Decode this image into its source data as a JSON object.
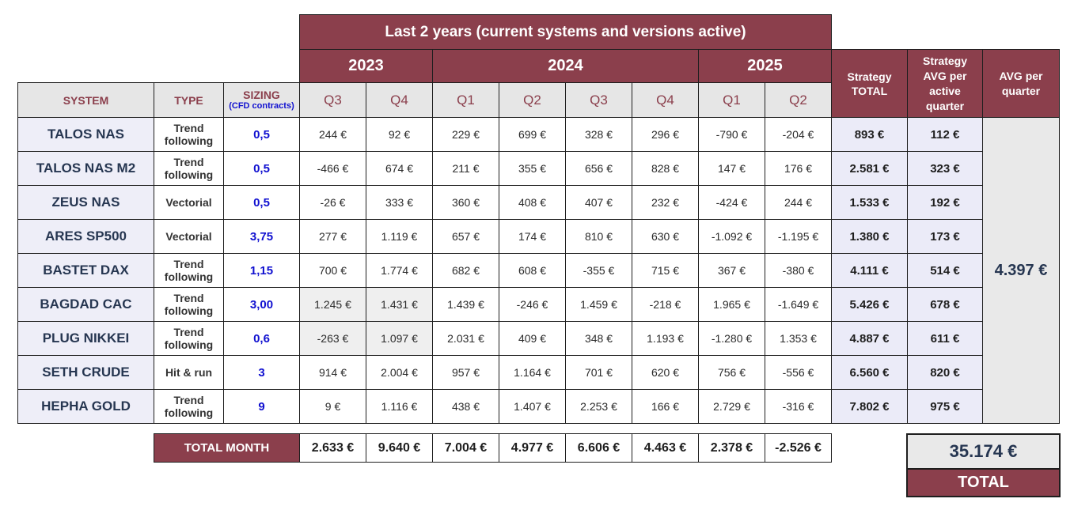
{
  "header": {
    "title": "Last 2 years (current systems and versions active)",
    "years": [
      "2023",
      "2024",
      "2025"
    ],
    "strategy_total": "Strategy TOTAL",
    "strategy_avg": "Strategy AVG per active quarter",
    "avg_per_quarter": "AVG per quarter"
  },
  "columns": {
    "system": "SYSTEM",
    "type": "TYPE",
    "sizing": "SIZING",
    "sizing_sub": "(CFD contracts)",
    "quarters": [
      "Q3",
      "Q4",
      "Q1",
      "Q2",
      "Q3",
      "Q4",
      "Q1",
      "Q2"
    ]
  },
  "rows": [
    {
      "system": "TALOS NAS",
      "type": "Trend following",
      "sizing": "0,5",
      "values": [
        "244 €",
        "92 €",
        "229 €",
        "699 €",
        "328 €",
        "296 €",
        "-790 €",
        "-204 €"
      ],
      "total": "893 €",
      "avg": "112 €"
    },
    {
      "system": "TALOS NAS M2",
      "type": "Trend following",
      "sizing": "0,5",
      "values": [
        "-466 €",
        "674 €",
        "211 €",
        "355 €",
        "656 €",
        "828 €",
        "147 €",
        "176 €"
      ],
      "total": "2.581 €",
      "avg": "323 €"
    },
    {
      "system": "ZEUS NAS",
      "type": "Vectorial",
      "sizing": "0,5",
      "values": [
        "-26 €",
        "333 €",
        "360 €",
        "408 €",
        "407 €",
        "232 €",
        "-424 €",
        "244 €"
      ],
      "total": "1.533 €",
      "avg": "192 €"
    },
    {
      "system": "ARES SP500",
      "type": "Vectorial",
      "sizing": "3,75",
      "values": [
        "277 €",
        "1.119 €",
        "657 €",
        "174 €",
        "810 €",
        "630 €",
        "-1.092 €",
        "-1.195 €"
      ],
      "total": "1.380 €",
      "avg": "173 €"
    },
    {
      "system": "BASTET DAX",
      "type": "Trend following",
      "sizing": "1,15",
      "values": [
        "700 €",
        "1.774 €",
        "682 €",
        "608 €",
        "-355 €",
        "715 €",
        "367 €",
        "-380 €"
      ],
      "total": "4.111 €",
      "avg": "514 €"
    },
    {
      "system": "BAGDAD CAC",
      "type": "Trend following",
      "sizing": "3,00",
      "values": [
        "1.245 €",
        "1.431 €",
        "1.439 €",
        "-246 €",
        "1.459 €",
        "-218 €",
        "1.965 €",
        "-1.649 €"
      ],
      "total": "5.426 €",
      "avg": "678 €"
    },
    {
      "system": "PLUG NIKKEI",
      "type": "Trend following",
      "sizing": "0,6",
      "values": [
        "-263 €",
        "1.097 €",
        "2.031 €",
        "409 €",
        "348 €",
        "1.193 €",
        "-1.280 €",
        "1.353 €"
      ],
      "total": "4.887 €",
      "avg": "611 €"
    },
    {
      "system": "SETH CRUDE",
      "type": "Hit & run",
      "sizing": "3",
      "values": [
        "914 €",
        "2.004 €",
        "957 €",
        "1.164 €",
        "701 €",
        "620 €",
        "756 €",
        "-556 €"
      ],
      "total": "6.560 €",
      "avg": "820 €"
    },
    {
      "system": "HEPHA GOLD",
      "type": "Trend following",
      "sizing": "9",
      "values": [
        "9 €",
        "1.116 €",
        "438 €",
        "1.407 €",
        "2.253 €",
        "166 €",
        "2.729 €",
        "-316 €"
      ],
      "total": "7.802 €",
      "avg": "975 €"
    }
  ],
  "avg_per_quarter_value": "4.397 €",
  "total_month": {
    "label": "TOTAL MONTH",
    "values": [
      "2.633 €",
      "9.640 €",
      "7.004 €",
      "4.977 €",
      "6.606 €",
      "4.463 €",
      "2.378 €",
      "-2.526 €"
    ]
  },
  "grand_total": {
    "value": "35.174 €",
    "label": "TOTAL"
  },
  "colors": {
    "maroon": "#8b3f4c",
    "navy_text": "#263651",
    "sizing_blue": "#1010d0"
  }
}
